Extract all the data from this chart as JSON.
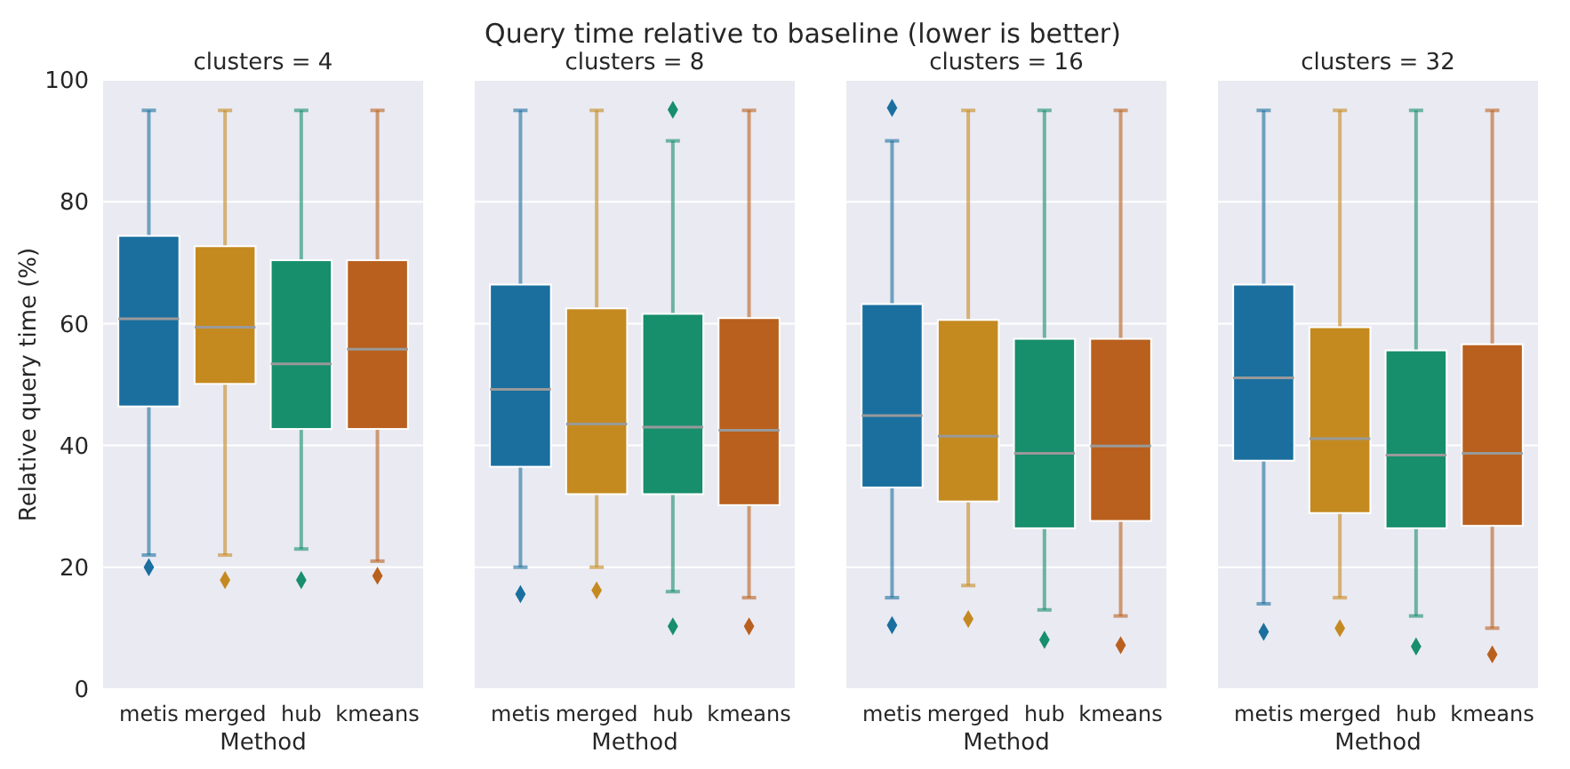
{
  "chart_data": [
    {
      "type": "other",
      "title": "Query time relative to baseline (lower is better)"
    },
    {
      "type": "box",
      "subtitle": "clusters = 4",
      "xlabel": "Method",
      "ylabel": "Relative query time (%)",
      "categories": [
        "metis",
        "merged",
        "hub",
        "kmeans"
      ],
      "ylim": [
        0,
        100
      ],
      "yticks": [
        0,
        20,
        40,
        60,
        80,
        100
      ],
      "grid": "y",
      "marker": "diamond",
      "colors": [
        "#1a6f9f",
        "#c48a20",
        "#178e6c",
        "#b9601e"
      ],
      "boxes": [
        {
          "low": 22,
          "q1": 46.4,
          "median": 60.8,
          "q3": 74.4,
          "high": 95,
          "outliers": [
            20
          ]
        },
        {
          "low": 22,
          "q1": 50.1,
          "median": 59.4,
          "q3": 72.7,
          "high": 95,
          "outliers": [
            17.9
          ]
        },
        {
          "low": 23,
          "q1": 42.7,
          "median": 53.4,
          "q3": 70.4,
          "high": 95,
          "outliers": [
            17.9
          ]
        },
        {
          "low": 21,
          "q1": 42.7,
          "median": 55.8,
          "q3": 70.4,
          "high": 95,
          "outliers": [
            18.6
          ]
        }
      ]
    },
    {
      "type": "box",
      "subtitle": "clusters = 8",
      "xlabel": "Method",
      "categories": [
        "metis",
        "merged",
        "hub",
        "kmeans"
      ],
      "ylim": [
        0,
        100
      ],
      "yticks": [
        0,
        20,
        40,
        60,
        80,
        100
      ],
      "tick_labels": "x",
      "grid": "y",
      "marker": "diamond",
      "colors": [
        "#1a6f9f",
        "#c48a20",
        "#178e6c",
        "#b9601e"
      ],
      "boxes": [
        {
          "low": 20,
          "q1": 36.5,
          "median": 49.2,
          "q3": 66.4,
          "high": 95,
          "outliers": [
            15.6
          ]
        },
        {
          "low": 20,
          "q1": 32,
          "median": 43.5,
          "q3": 62.5,
          "high": 95,
          "outliers": [
            16.2
          ]
        },
        {
          "low": 16,
          "q1": 32,
          "median": 43,
          "q3": 61.6,
          "high": 90,
          "outliers": [
            95.1,
            10.3
          ]
        },
        {
          "low": 15,
          "q1": 30.2,
          "median": 42.5,
          "q3": 60.9,
          "high": 95,
          "outliers": [
            10.3
          ]
        }
      ]
    },
    {
      "type": "box",
      "subtitle": "clusters = 16",
      "xlabel": "Method",
      "categories": [
        "metis",
        "merged",
        "hub",
        "kmeans"
      ],
      "ylim": [
        0,
        100
      ],
      "yticks": [
        0,
        20,
        40,
        60,
        80,
        100
      ],
      "tick_labels": "x",
      "grid": "y",
      "marker": "diamond",
      "colors": [
        "#1a6f9f",
        "#c48a20",
        "#178e6c",
        "#b9601e"
      ],
      "boxes": [
        {
          "low": 15,
          "q1": 33.1,
          "median": 44.9,
          "q3": 63.2,
          "high": 90,
          "outliers": [
            95.4,
            10.5
          ]
        },
        {
          "low": 17,
          "q1": 30.8,
          "median": 41.5,
          "q3": 60.6,
          "high": 95,
          "outliers": [
            11.5
          ]
        },
        {
          "low": 13,
          "q1": 26.4,
          "median": 38.7,
          "q3": 57.5,
          "high": 95,
          "outliers": [
            8.1
          ]
        },
        {
          "low": 12,
          "q1": 27.6,
          "median": 39.9,
          "q3": 57.5,
          "high": 95,
          "outliers": [
            7.2
          ]
        }
      ]
    },
    {
      "type": "box",
      "subtitle": "clusters = 32",
      "xlabel": "Method",
      "categories": [
        "metis",
        "merged",
        "hub",
        "kmeans"
      ],
      "ylim": [
        0,
        100
      ],
      "yticks": [
        0,
        20,
        40,
        60,
        80,
        100
      ],
      "tick_labels": "x",
      "grid": "y",
      "marker": "diamond",
      "colors": [
        "#1a6f9f",
        "#c48a20",
        "#178e6c",
        "#b9601e"
      ],
      "boxes": [
        {
          "low": 14,
          "q1": 37.5,
          "median": 51.1,
          "q3": 66.4,
          "high": 95,
          "outliers": [
            9.4
          ]
        },
        {
          "low": 15,
          "q1": 28.9,
          "median": 41.1,
          "q3": 59.4,
          "high": 95,
          "outliers": [
            10
          ]
        },
        {
          "low": 12,
          "q1": 26.4,
          "median": 38.4,
          "q3": 55.6,
          "high": 95,
          "outliers": [
            7
          ]
        },
        {
          "low": 10,
          "q1": 26.8,
          "median": 38.7,
          "q3": 56.6,
          "high": 95,
          "outliers": [
            5.7
          ]
        }
      ]
    }
  ]
}
